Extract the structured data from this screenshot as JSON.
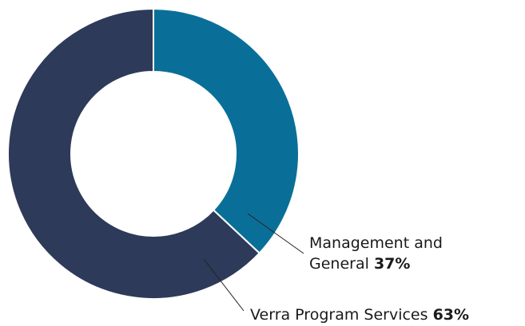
{
  "chart_data": {
    "type": "donut",
    "categories": [
      "Management and General",
      "Verra Program Services"
    ],
    "values": [
      37,
      63
    ],
    "value_labels": [
      "37%",
      "63%"
    ],
    "colors": [
      "#0a6f98",
      "#2d3a59"
    ]
  }
}
